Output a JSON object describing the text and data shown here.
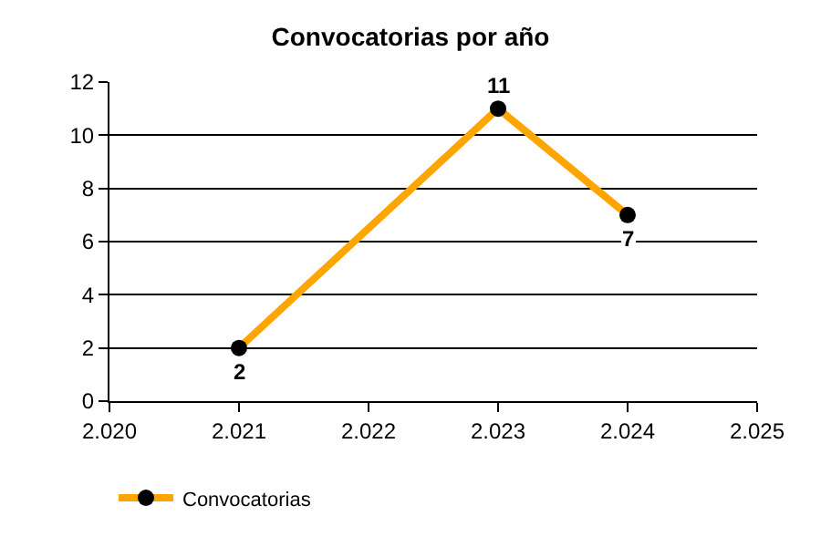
{
  "chart_data": {
    "type": "line",
    "title": "Convocatorias por año",
    "x": [
      2021,
      2023,
      2024
    ],
    "series": [
      {
        "name": "Convocatorias",
        "color": "#ffa500",
        "values": [
          2,
          11,
          7
        ]
      }
    ],
    "xlim": [
      2020,
      2025
    ],
    "xticks": [
      {
        "value": 2020,
        "label": "2.020"
      },
      {
        "value": 2021,
        "label": "2.021"
      },
      {
        "value": 2022,
        "label": "2.022"
      },
      {
        "value": 2023,
        "label": "2.023"
      },
      {
        "value": 2024,
        "label": "2.024"
      },
      {
        "value": 2025,
        "label": "2.025"
      }
    ],
    "ylim": [
      0,
      12
    ],
    "yticks": [
      0,
      2,
      4,
      6,
      8,
      10,
      12
    ],
    "grid": "y",
    "legend": "bottom left",
    "marker": "circle",
    "line_style": "solid",
    "data_labels": true
  }
}
